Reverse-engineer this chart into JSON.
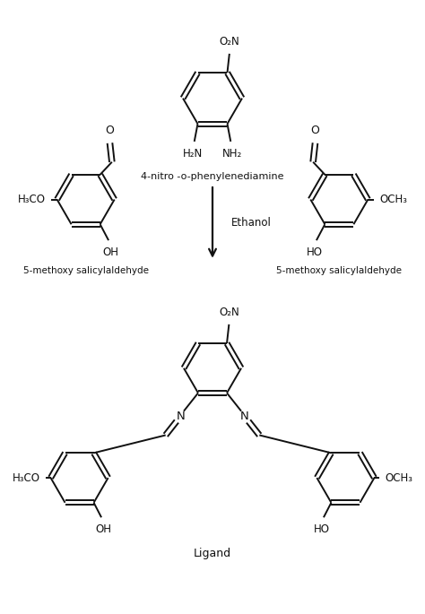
{
  "background_color": "#ffffff",
  "line_color": "#111111",
  "line_width": 1.4,
  "text_color": "#111111",
  "figsize": [
    4.74,
    6.85
  ],
  "dpi": 100,
  "labels": {
    "reactant_top": "4-nitro -o-phenylenediamine",
    "reactant_left": "5-methoxy salicylaldehyde",
    "reactant_right": "5-methoxy salicylaldehyde",
    "product": "Ligand",
    "reagent": "Ethanol"
  }
}
